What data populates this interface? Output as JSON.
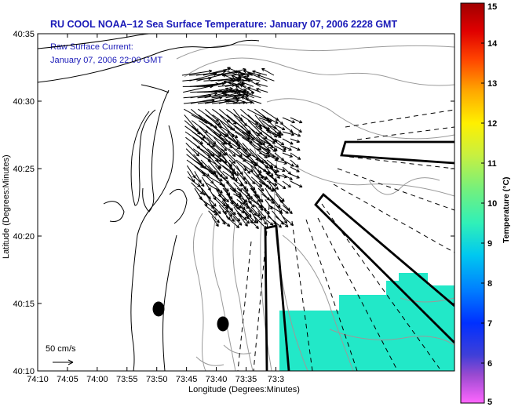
{
  "chart_data": {
    "type": "map",
    "title": "RU COOL  NOAA–12  Sea Surface Temperature:  January 07, 2006 2228 GMT",
    "annotation_line1": "Raw Surface Current:",
    "annotation_line2": "January 07, 2006 22:00 GMT",
    "xlabel": "Longitude (Degrees:Minutes)",
    "ylabel": "Latitude (Degrees:Minutes)",
    "xlim_minutes_west": [
      70,
      0
    ],
    "ylim_minutes": [
      10,
      35
    ],
    "x_ticks": [
      {
        "v": 70,
        "label": "74:10"
      },
      {
        "v": 65,
        "label": "74:05"
      },
      {
        "v": 60,
        "label": "74:00"
      },
      {
        "v": 55,
        "label": "73:55"
      },
      {
        "v": 50,
        "label": "73:50"
      },
      {
        "v": 45,
        "label": "73:45"
      },
      {
        "v": 40,
        "label": "73:40"
      },
      {
        "v": 35,
        "label": "73:35"
      },
      {
        "v": 30,
        "label": "73:3"
      }
    ],
    "y_ticks": [
      {
        "v": 35,
        "label": "40:35"
      },
      {
        "v": 30,
        "label": "40:30"
      },
      {
        "v": 25,
        "label": "40:25"
      },
      {
        "v": 20,
        "label": "40:20"
      },
      {
        "v": 15,
        "label": "40:15"
      },
      {
        "v": 10,
        "label": "40:10"
      }
    ],
    "colorbar": {
      "label": "Temperature (°C)",
      "range": [
        5,
        15
      ],
      "tick_labels": [
        "15",
        "14",
        "13",
        "12",
        "11",
        "10",
        "9",
        "8",
        "7",
        "6",
        "5"
      ]
    },
    "scale_label": "50 cm/s",
    "sst_patch_temperature_c": 8.8,
    "sst_patch_color": "#22e8c8"
  },
  "colors": {
    "title_blue": "#1a1ab8",
    "contour_gray": "#9a9a9a",
    "coast": "#000000"
  }
}
